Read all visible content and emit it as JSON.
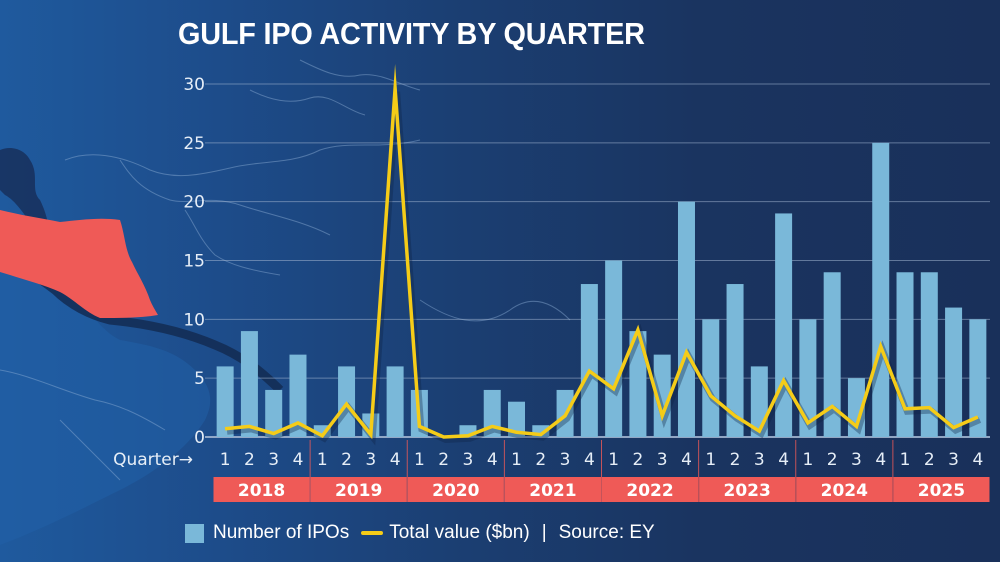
{
  "title": "GULF IPO ACTIVITY BY QUARTER",
  "colors": {
    "bar": "#7ab8d9",
    "line": "#f5cc18",
    "year_band": "#ef5a57",
    "highlight_country": "#ef5a57",
    "grid": "#9fb3cf"
  },
  "legend": {
    "bars_label": "Number of IPOs",
    "line_label": "Total value ($bn)",
    "separator": "|",
    "source": "Source: EY"
  },
  "chart_data": {
    "type": "bar+line",
    "title": "GULF IPO ACTIVITY BY QUARTER",
    "xlabel": "Quarter→",
    "ylabel": "",
    "ylim": [
      0,
      30
    ],
    "yticks": [
      0,
      5,
      10,
      15,
      20,
      25,
      30
    ],
    "grid": true,
    "legend_position": "bottom",
    "years": [
      "2018",
      "2019",
      "2020",
      "2021",
      "2022",
      "2023",
      "2024",
      "2025"
    ],
    "quarter_labels": [
      "1",
      "2",
      "3",
      "4"
    ],
    "categories": [
      "2018 Q1",
      "2018 Q2",
      "2018 Q3",
      "2018 Q4",
      "2019 Q1",
      "2019 Q2",
      "2019 Q3",
      "2019 Q4",
      "2020 Q1",
      "2020 Q2",
      "2020 Q3",
      "2020 Q4",
      "2021 Q1",
      "2021 Q2",
      "2021 Q3",
      "2021 Q4",
      "2022 Q1",
      "2022 Q2",
      "2022 Q3",
      "2022 Q4",
      "2023 Q1",
      "2023 Q2",
      "2023 Q3",
      "2023 Q4",
      "2024 Q1",
      "2024 Q2",
      "2024 Q3",
      "2024 Q4",
      "2025 Q1",
      "2025 Q2",
      "2025 Q3",
      "2025 Q4"
    ],
    "series": [
      {
        "name": "Number of IPOs",
        "type": "bar",
        "values": [
          6,
          9,
          4,
          7,
          1,
          6,
          2,
          6,
          4,
          0,
          1,
          4,
          3,
          1,
          4,
          13,
          15,
          9,
          7,
          20,
          10,
          13,
          6,
          19,
          10,
          14,
          5,
          25,
          14,
          14,
          11,
          10
        ]
      },
      {
        "name": "Total value ($bn)",
        "type": "line",
        "values": [
          0.7,
          0.9,
          0.3,
          1.2,
          0.1,
          2.8,
          0.2,
          29.6,
          0.9,
          0.0,
          0.1,
          0.9,
          0.4,
          0.2,
          1.8,
          5.6,
          4.1,
          9.1,
          1.8,
          7.2,
          3.5,
          1.8,
          0.5,
          4.8,
          1.2,
          2.6,
          0.9,
          7.7,
          2.4,
          2.5,
          0.8,
          1.7
        ]
      }
    ]
  }
}
